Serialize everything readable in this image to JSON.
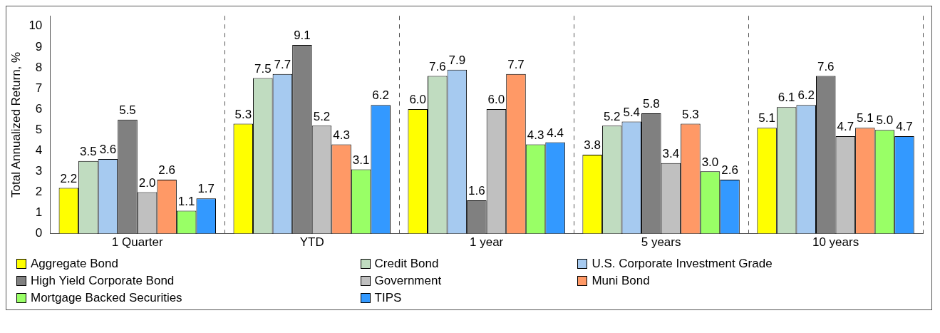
{
  "chart_data": {
    "type": "bar",
    "ylabel": "Total Annualized Return, %",
    "categories": [
      "1 Quarter",
      "YTD",
      "1 year",
      "5 years",
      "10 years"
    ],
    "series": [
      {
        "name": "Aggregate Bond",
        "color": "#ffff00",
        "values": [
          2.2,
          5.3,
          6.0,
          3.8,
          5.1
        ],
        "value_labels": [
          "2.2",
          "5.3",
          "6.0",
          "3.8",
          "5.1"
        ]
      },
      {
        "name": "Credit Bond",
        "color": "#c0dcc0",
        "values": [
          3.5,
          7.5,
          7.6,
          5.2,
          6.1
        ],
        "value_labels": [
          "3.5",
          "7.5",
          "7.6",
          "5.2",
          "6.1"
        ]
      },
      {
        "name": "U.S. Corporate Investment Grade",
        "color": "#a6caf0",
        "values": [
          3.6,
          7.7,
          7.9,
          5.4,
          6.2
        ],
        "value_labels": [
          "3.6",
          "7.7",
          "7.9",
          "5.4",
          "6.2"
        ]
      },
      {
        "name": "High Yield Corporate Bond",
        "color": "#808080",
        "values": [
          5.5,
          9.1,
          1.6,
          5.8,
          7.6
        ],
        "value_labels": [
          "5.5",
          "9.1",
          "1.6",
          "5.8",
          "7.6"
        ]
      },
      {
        "name": "Government",
        "color": "#c0c0c0",
        "values": [
          2.0,
          5.2,
          6.0,
          3.4,
          4.7
        ],
        "value_labels": [
          "2.0",
          "5.2",
          "6.0",
          "3.4",
          "4.7"
        ]
      },
      {
        "name": "Muni Bond",
        "color": "#ff9966",
        "values": [
          2.6,
          4.3,
          7.7,
          5.3,
          5.1
        ],
        "value_labels": [
          "2.6",
          "4.3",
          "7.7",
          "5.3",
          "5.1"
        ]
      },
      {
        "name": "Mortgage Backed Securities",
        "color": "#99ff66",
        "values": [
          1.1,
          3.1,
          4.3,
          3.0,
          5.0
        ],
        "value_labels": [
          "1.1",
          "3.1",
          "4.3",
          "3.0",
          "5.0"
        ]
      },
      {
        "name": "TIPS",
        "color": "#3399ff",
        "values": [
          1.7,
          6.2,
          4.4,
          2.6,
          4.7
        ],
        "value_labels": [
          "1.7",
          "6.2",
          "4.4",
          "2.6",
          "4.7"
        ]
      }
    ],
    "ylim": [
      0,
      10.5
    ],
    "yticks": [
      0,
      1,
      2,
      3,
      4,
      5,
      6,
      7,
      8,
      9,
      10
    ],
    "grid": "x",
    "legend": "bottom"
  }
}
